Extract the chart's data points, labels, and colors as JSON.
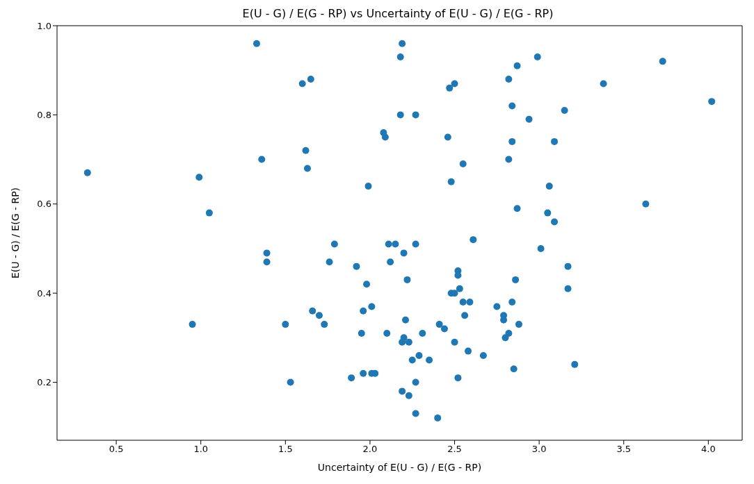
{
  "chart_data": {
    "type": "scatter",
    "title": "E(U - G) / E(G - RP) vs Uncertainty of E(U - G) / E(G - RP)",
    "xlabel": "Uncertainty of E(U - G) / E(G - RP)",
    "ylabel": "E(U - G) / E(G - RP)",
    "xlim": [
      0.15,
      4.2
    ],
    "xticks": [
      {
        "value": 0.5,
        "label": "0.5"
      },
      {
        "value": 1,
        "label": "1.0"
      },
      {
        "value": 1.5,
        "label": "1.5"
      },
      {
        "value": 2,
        "label": "2.0"
      },
      {
        "value": 2.5,
        "label": "2.5"
      },
      {
        "value": 3,
        "label": "3.0"
      },
      {
        "value": 3.5,
        "label": "3.5"
      },
      {
        "value": 4,
        "label": "4.0"
      }
    ],
    "ylim": [
      0.07,
      1.0
    ],
    "yticks": [
      {
        "value": 0.2,
        "label": "0.2"
      },
      {
        "value": 0.4,
        "label": "0.4"
      },
      {
        "value": 0.6,
        "label": "0.6"
      },
      {
        "value": 0.8,
        "label": "0.8"
      },
      {
        "value": 1,
        "label": "1.0"
      }
    ],
    "grid": false,
    "legend": false,
    "marker": "circle",
    "series": [
      {
        "color": "#1f77b4",
        "x": [
          0.33,
          0.95,
          0.99,
          1.05,
          1.33,
          1.36,
          1.39,
          1.39,
          1.5,
          1.53,
          1.6,
          1.62,
          1.63,
          1.65,
          1.66,
          1.7,
          1.73,
          1.76,
          1.79,
          1.89,
          1.92,
          1.95,
          1.96,
          1.96,
          1.98,
          1.99,
          2.01,
          2.01,
          2.03,
          2.08,
          2.09,
          2.1,
          2.11,
          2.12,
          2.15,
          2.18,
          2.18,
          2.19,
          2.19,
          2.19,
          2.2,
          2.2,
          2.21,
          2.22,
          2.23,
          2.23,
          2.25,
          2.27,
          2.27,
          2.27,
          2.27,
          2.29,
          2.31,
          2.35,
          2.4,
          2.41,
          2.44,
          2.46,
          2.47,
          2.48,
          2.48,
          2.5,
          2.5,
          2.5,
          2.52,
          2.52,
          2.52,
          2.53,
          2.55,
          2.55,
          2.56,
          2.58,
          2.59,
          2.61,
          2.67,
          2.75,
          2.79,
          2.79,
          2.8,
          2.82,
          2.82,
          2.82,
          2.84,
          2.84,
          2.84,
          2.85,
          2.86,
          2.87,
          2.87,
          2.88,
          2.94,
          2.99,
          3.01,
          3.06,
          3.05,
          3.09,
          3.09,
          3.15,
          3.17,
          3.17,
          3.21,
          3.38,
          3.63,
          3.73,
          4.02
        ],
        "values": [
          0.67,
          0.33,
          0.66,
          0.58,
          0.96,
          0.7,
          0.49,
          0.47,
          0.33,
          0.2,
          0.87,
          0.72,
          0.68,
          0.88,
          0.36,
          0.35,
          0.33,
          0.47,
          0.51,
          0.21,
          0.46,
          0.31,
          0.36,
          0.22,
          0.42,
          0.64,
          0.37,
          0.22,
          0.22,
          0.76,
          0.75,
          0.31,
          0.51,
          0.47,
          0.51,
          0.93,
          0.8,
          0.96,
          0.29,
          0.18,
          0.49,
          0.3,
          0.34,
          0.43,
          0.29,
          0.17,
          0.25,
          0.51,
          0.2,
          0.8,
          0.13,
          0.26,
          0.31,
          0.25,
          0.12,
          0.33,
          0.32,
          0.75,
          0.86,
          0.65,
          0.4,
          0.87,
          0.4,
          0.29,
          0.21,
          0.45,
          0.44,
          0.41,
          0.69,
          0.38,
          0.35,
          0.27,
          0.38,
          0.52,
          0.26,
          0.37,
          0.35,
          0.34,
          0.3,
          0.88,
          0.7,
          0.31,
          0.38,
          0.82,
          0.74,
          0.23,
          0.43,
          0.91,
          0.59,
          0.33,
          0.79,
          0.93,
          0.5,
          0.64,
          0.58,
          0.74,
          0.56,
          0.81,
          0.46,
          0.41,
          0.24,
          0.87,
          0.6,
          0.92,
          0.83
        ]
      }
    ]
  }
}
